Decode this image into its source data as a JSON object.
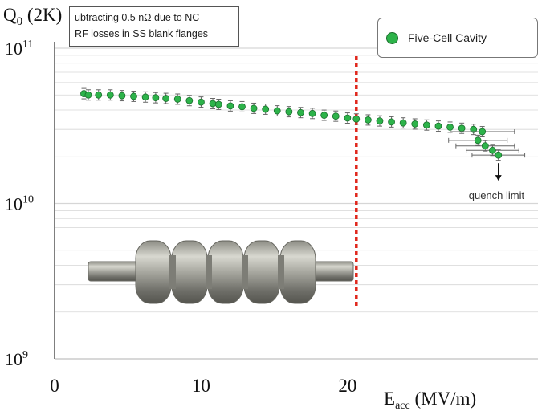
{
  "chart_data": {
    "type": "scatter",
    "title": "",
    "ylabel_main": "Q",
    "ylabel_sub": "0",
    "ylabel_suffix": " (2K)",
    "xlabel_main": "E",
    "xlabel_sub": "acc",
    "xlabel_suffix": " (MV/m)",
    "xlim": [
      0,
      33
    ],
    "ylim_log10": [
      9,
      11
    ],
    "yscale": "log",
    "x_ticks": [
      {
        "value": 0,
        "label": "0"
      },
      {
        "value": 10,
        "label": "10"
      },
      {
        "value": 20,
        "label": "20"
      }
    ],
    "y_ticks": [
      {
        "value": 9,
        "base": "10",
        "exp": "9"
      },
      {
        "value": 10,
        "base": "10",
        "exp": "10"
      },
      {
        "value": 11,
        "base": "10",
        "exp": "11"
      }
    ],
    "grid": true,
    "legend": {
      "position": "top-right",
      "entries": [
        "Five-Cell Cavity"
      ]
    },
    "series": [
      {
        "name": "Five-Cell Cavity",
        "color": "#2db34a",
        "x": [
          2.0,
          2.3,
          3.0,
          3.8,
          4.6,
          5.4,
          6.2,
          6.9,
          7.6,
          8.4,
          9.2,
          10.0,
          10.8,
          11.2,
          12.0,
          12.8,
          13.6,
          14.4,
          15.2,
          16.0,
          16.8,
          17.6,
          18.4,
          19.2,
          20.0,
          20.6,
          21.4,
          22.2,
          23.0,
          23.8,
          24.6,
          25.4,
          26.2,
          27.0,
          27.8,
          28.6,
          29.2,
          28.9,
          29.4,
          29.9,
          30.3
        ],
        "y": [
          51000000000.0,
          50000000000.0,
          50000000000.0,
          50000000000.0,
          49500000000.0,
          49000000000.0,
          48500000000.0,
          48000000000.0,
          47500000000.0,
          47000000000.0,
          46000000000.0,
          45000000000.0,
          44000000000.0,
          43500000000.0,
          42500000000.0,
          42000000000.0,
          41000000000.0,
          40500000000.0,
          39500000000.0,
          39000000000.0,
          38500000000.0,
          38000000000.0,
          37000000000.0,
          36500000000.0,
          35500000000.0,
          35000000000.0,
          34500000000.0,
          34000000000.0,
          33500000000.0,
          33000000000.0,
          32500000000.0,
          32000000000.0,
          31500000000.0,
          31000000000.0,
          30500000000.0,
          30000000000.0,
          29000000000.0,
          25500000000.0,
          23500000000.0,
          22000000000.0,
          20500000000.0
        ],
        "y_err_factor": 1.08,
        "x_err": [
          0,
          0,
          0,
          0,
          0,
          0,
          0,
          0,
          0,
          0,
          0,
          0,
          0,
          0,
          0,
          0,
          0,
          0,
          0,
          0,
          0,
          0,
          0,
          0,
          0,
          0,
          0,
          0,
          0,
          0,
          0,
          0,
          0,
          0,
          0,
          0,
          2.2,
          2.0,
          2.0,
          1.8,
          1.8
        ]
      }
    ],
    "annotations": {
      "note_line1": "ubtracting 0.5 nΩ due to NC",
      "note_line2": "RF losses in SS blank flanges",
      "quench_label": "quench limit",
      "threshold_x": 20.6
    }
  },
  "colors": {
    "marker": "#2db34a",
    "marker_edge": "#1a6e2c",
    "threshold_line": "#e0261b",
    "grid": "#d6d6d6",
    "axis": "#555555"
  }
}
